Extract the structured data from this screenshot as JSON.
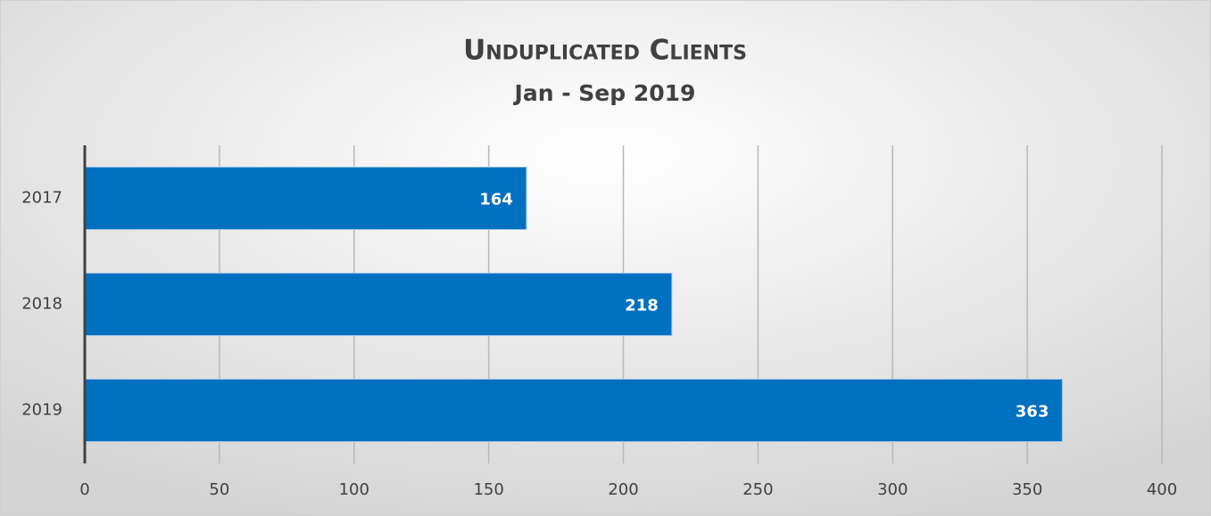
{
  "chart_data": {
    "type": "hbar",
    "title": "Unduplicated Clients",
    "subtitle": "Jan - Sep 2019",
    "categories": [
      "2017",
      "2018",
      "2019"
    ],
    "values": [
      164,
      218,
      363
    ],
    "color": "#0070c0",
    "xlim": [
      0,
      400
    ],
    "xticks": [
      0,
      50,
      100,
      150,
      200,
      250,
      300,
      350,
      400
    ],
    "grid": true
  }
}
